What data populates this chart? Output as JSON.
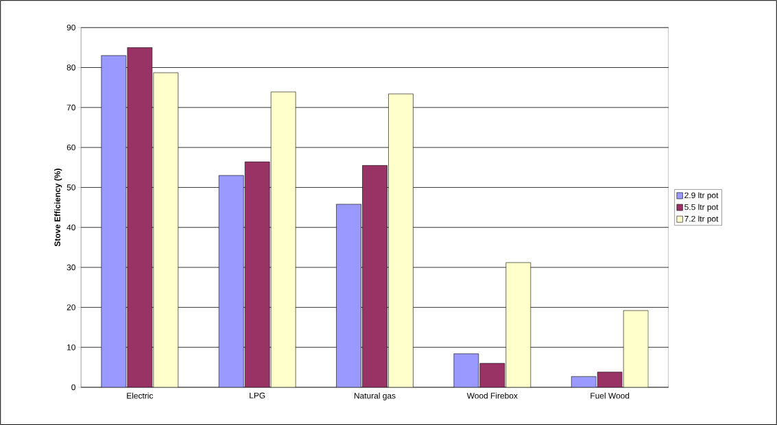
{
  "chart_data": {
    "type": "bar",
    "ylabel": "Stove Efficiency (%)",
    "categories": [
      "Electric",
      "LPG",
      "Natural gas",
      "Wood Firebox",
      "Fuel Wood"
    ],
    "series": [
      {
        "name": "2.9 ltr pot",
        "color": "#9999ff",
        "values": [
          83,
          53,
          45.8,
          8.4,
          2.7
        ]
      },
      {
        "name": "5.5 ltr pot",
        "color": "#993366",
        "values": [
          85,
          56.4,
          55.5,
          6,
          3.8
        ]
      },
      {
        "name": "7.2 ltr pot",
        "color": "#ffffcc",
        "values": [
          78.7,
          73.9,
          73.4,
          31.2,
          19.2
        ]
      }
    ],
    "ylim": [
      0,
      90
    ],
    "yticks": [
      0,
      10,
      20,
      30,
      40,
      50,
      60,
      70,
      80,
      90
    ],
    "grid": "y",
    "legend": "right"
  }
}
